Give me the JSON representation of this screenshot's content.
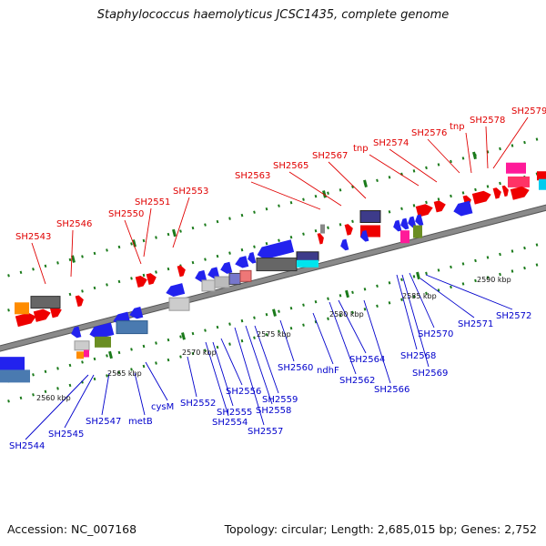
{
  "title": "Staphylococcus haemolyticus JCSC1435, complete genome",
  "footer": {
    "accession": "Accession: NC_007168",
    "summary": "Topology: circular; Length: 2,685,015 bp; Genes: 2,752"
  },
  "colors": {
    "top_labels": "#e00000",
    "bottom_labels": "#0000cc",
    "backbone": "#8a8a8a",
    "tick": "#1a7a1a"
  },
  "kbp_ticks": [
    "2560 kbp",
    "2565 kbp",
    "2570 kbp",
    "2575 kbp",
    "2580 kbp",
    "2585 kbp",
    "2590 kbp"
  ],
  "top_labels": [
    "SH2543",
    "SH2546",
    "SH2550",
    "SH2551",
    "SH2553",
    "SH2563",
    "SH2565",
    "SH2567",
    "tnp",
    "SH2574",
    "SH2576",
    "tnp",
    "SH2578",
    "SH2579"
  ],
  "bottom_labels": [
    "SH2544",
    "SH2545",
    "SH2547",
    "metB",
    "cysM",
    "SH2552",
    "SH2554",
    "SH2555",
    "SH2556",
    "SH2557",
    "SH2558",
    "SH2559",
    "SH2560",
    "ndhF",
    "SH2562",
    "SH2564",
    "SH2566",
    "SH2568",
    "SH2569",
    "SH2570",
    "SH2571",
    "SH2572"
  ]
}
